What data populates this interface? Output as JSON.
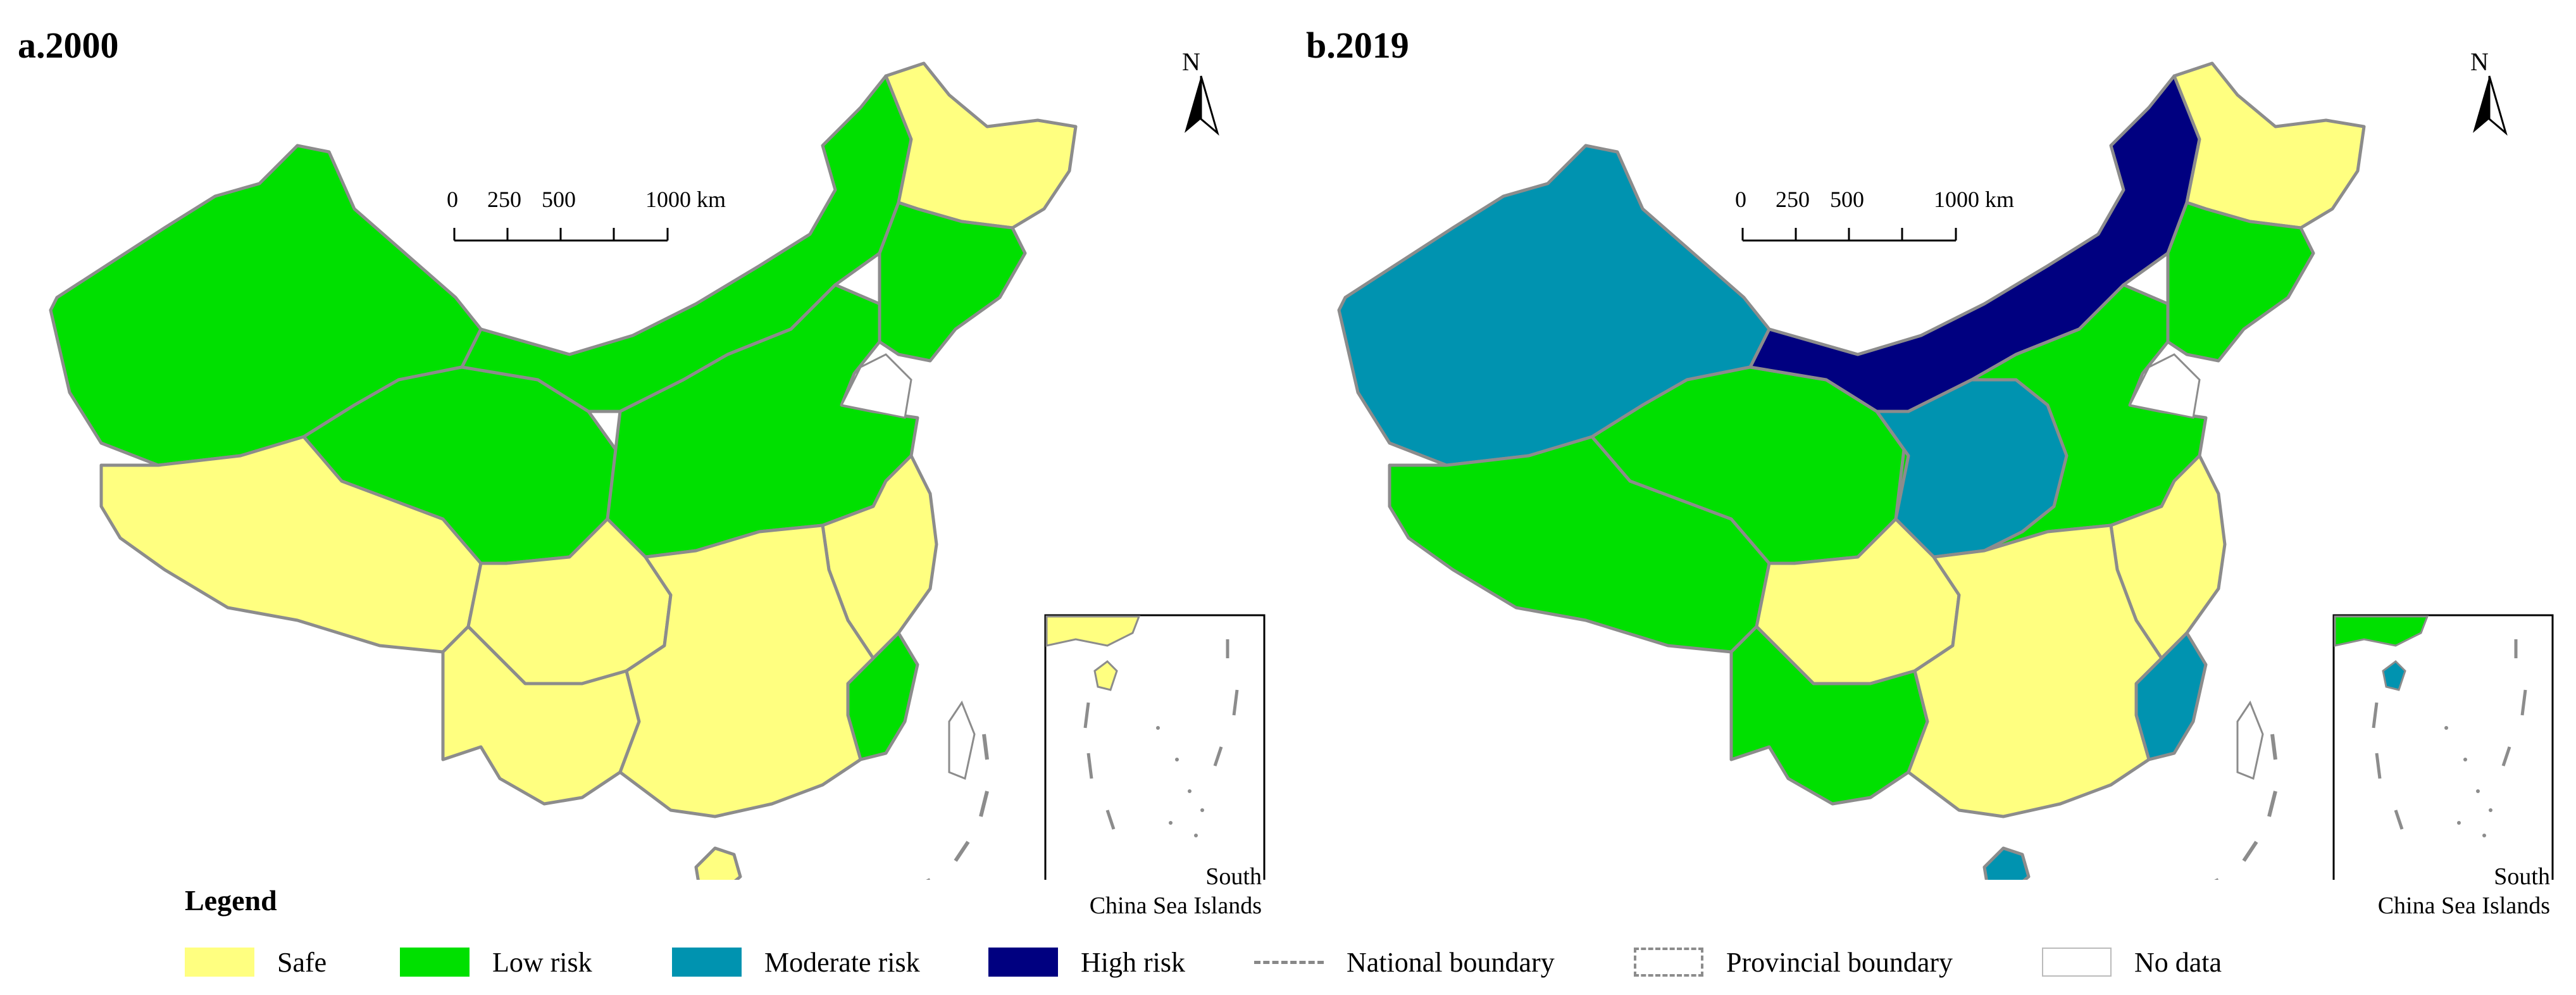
{
  "maps": [
    {
      "title": "a.2000",
      "north": "N",
      "scale": {
        "ticks": [
          "0",
          "250",
          "500",
          "1000 km"
        ]
      },
      "inset": {
        "label_lines": [
          "South",
          "China Sea Islands"
        ]
      },
      "regions": {
        "xinjiang": "Low risk",
        "tibet": "Safe",
        "qinghai": "Low risk",
        "inner_mongolia": "Low risk",
        "heilongjiang": "Safe",
        "jilin_liaoning": "Low risk",
        "north_china_plain": "Low risk",
        "east_coast": "Safe",
        "fujian": "Low risk",
        "sichuan": "Safe",
        "southwest": "Safe",
        "south_central": "Safe",
        "hainan": "Safe"
      }
    },
    {
      "title": "b.2019",
      "north": "N",
      "scale": {
        "ticks": [
          "0",
          "250",
          "500",
          "1000 km"
        ]
      },
      "inset": {
        "label_lines": [
          "South",
          "China Sea Islands"
        ]
      },
      "regions": {
        "xinjiang": "Moderate risk",
        "tibet": "Low risk",
        "qinghai": "Low risk",
        "inner_mongolia": "High risk",
        "heilongjiang": "Safe",
        "jilin_liaoning": "Low risk",
        "north_china_plain": "Low risk",
        "loess_plateau": "Moderate risk",
        "east_coast": "Safe",
        "fujian": "Moderate risk",
        "sichuan": "Safe",
        "southwest": "Low risk",
        "south_central": "Safe",
        "hainan": "Moderate risk"
      }
    }
  ],
  "legend": {
    "title": "Legend",
    "items": [
      {
        "label": "Safe",
        "color": "#ffff80",
        "kind": "fill"
      },
      {
        "label": "Low risk",
        "color": "#00e000",
        "kind": "fill"
      },
      {
        "label": "Moderate risk",
        "color": "#0093b0",
        "kind": "fill"
      },
      {
        "label": "High risk",
        "color": "#000080",
        "kind": "fill"
      },
      {
        "label": "National boundary",
        "color": "#8c8c8c",
        "kind": "line"
      },
      {
        "label": "Provincial boundary",
        "color": "#8c8c8c",
        "kind": "box"
      },
      {
        "label": "No data",
        "color": "#ffffff",
        "kind": "fill"
      }
    ]
  }
}
